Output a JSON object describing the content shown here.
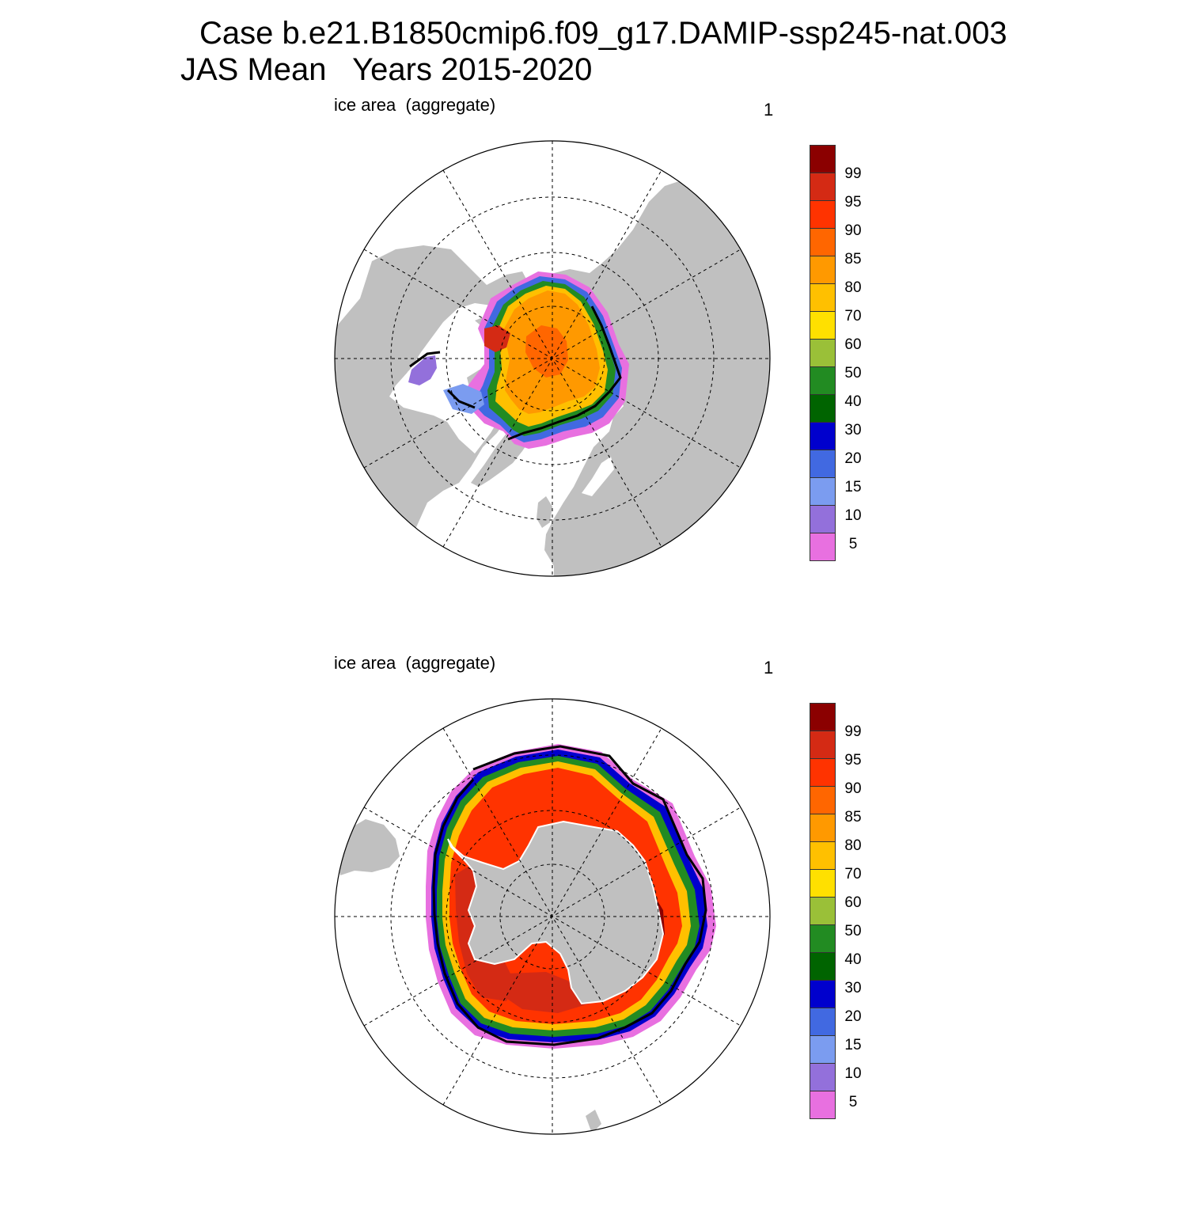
{
  "title": {
    "line1": "Case b.e21.B1850cmip6.f09_g17.DAMIP-ssp245-nat.003",
    "line2": "JAS Mean   Years 2015-2020"
  },
  "panels": [
    {
      "id": "north",
      "hemisphere": "Arctic",
      "left_label": "ice area  (aggregate)",
      "right_label": "1"
    },
    {
      "id": "south",
      "hemisphere": "Antarctic",
      "left_label": "ice area  (aggregate)",
      "right_label": "1"
    }
  ],
  "colorbar": {
    "tick_labels": [
      "99",
      "95",
      "90",
      "85",
      "80",
      "70",
      "60",
      "50",
      "40",
      "30",
      "20",
      "15",
      "10",
      "5"
    ],
    "colors_top_to_bottom": [
      "#8b0000",
      "#d42a14",
      "#ff3300",
      "#ff6600",
      "#ff9900",
      "#ffc000",
      "#ffe000",
      "#9ac038",
      "#228b22",
      "#006400",
      "#0000cd",
      "#4169e1",
      "#7b9cf0",
      "#9370db",
      "#e870e0"
    ]
  },
  "colors": {
    "land": "#c0c0c0",
    "ocean": "#ffffff",
    "contour": "#000000",
    "grid": "#000000"
  }
}
